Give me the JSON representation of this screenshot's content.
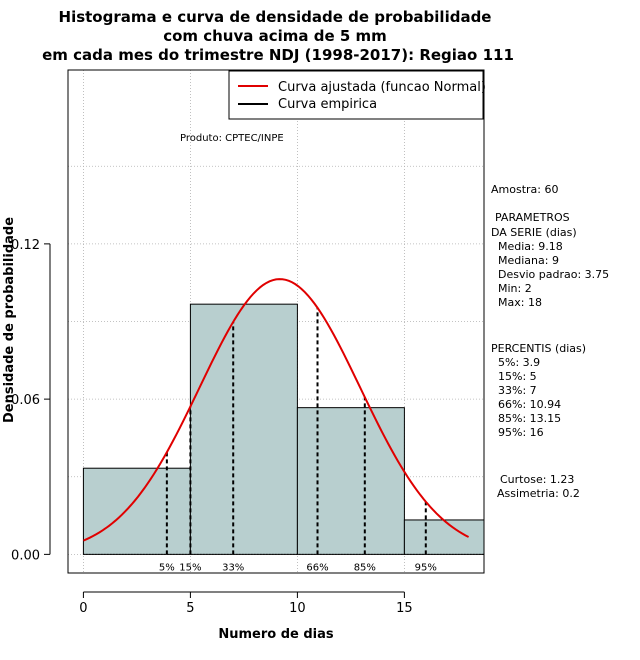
{
  "chart_data": {
    "type": "bar",
    "title_lines": [
      "Histograma e curva de densidade de probabilidade",
      "com chuva acima de 5 mm",
      "em cada mes do trimestre NDJ (1998-2017): Regiao 111"
    ],
    "xlabel": "Numero de dias",
    "ylabel": "Densidade de probabilidade",
    "xlim": [
      -0.72,
      18.72
    ],
    "ylim": [
      -0.0072,
      0.1872
    ],
    "x_ticks": [
      0,
      5,
      10,
      15
    ],
    "y_ticks": [
      0.0,
      0.06,
      0.12
    ],
    "y_tick_labels": [
      "0.00",
      "0.06",
      "0.12"
    ],
    "grid": true,
    "bins": [
      {
        "from": 0,
        "to": 5,
        "density": 0.0333
      },
      {
        "from": 5,
        "to": 10,
        "density": 0.0967
      },
      {
        "from": 10,
        "to": 15,
        "density": 0.0567
      },
      {
        "from": 15,
        "to": 18.72,
        "density": 0.0133
      }
    ],
    "fitted_curve": {
      "name": "Curva ajustada (funcao Normal)",
      "mean": 9.18,
      "sd": 3.75,
      "x_from": 0,
      "x_to": 18,
      "color": "#e00000"
    },
    "empirical_curve": {
      "name": "Curva empirica",
      "color": "#000000"
    },
    "percentile_markers": [
      {
        "label": "5%",
        "x": 3.9
      },
      {
        "label": "15%",
        "x": 5
      },
      {
        "label": "33%",
        "x": 7
      },
      {
        "label": "66%",
        "x": 10.94
      },
      {
        "label": "85%",
        "x": 13.15
      },
      {
        "label": "95%",
        "x": 16
      }
    ],
    "bar_color": "#b8cfcf",
    "source_note": "Produto: CPTEC/INPE"
  },
  "stats_panel": {
    "sample": "Amostra: 60",
    "params_header_1": "PARAMETROS",
    "params_header_2": "DA SERIE (dias)",
    "params": [
      "Media: 9.18",
      "Mediana: 9",
      "Desvio padrao: 3.75",
      "Min: 2",
      "Max: 18"
    ],
    "percentis_header": "PERCENTIS (dias)",
    "percentis": [
      "5%: 3.9",
      "15%: 5",
      "33%: 7",
      "66%: 10.94",
      "85%: 13.15",
      "95%: 16"
    ],
    "curtose": "Curtose: 1.23",
    "assimetria": "Assimetria: 0.2"
  }
}
